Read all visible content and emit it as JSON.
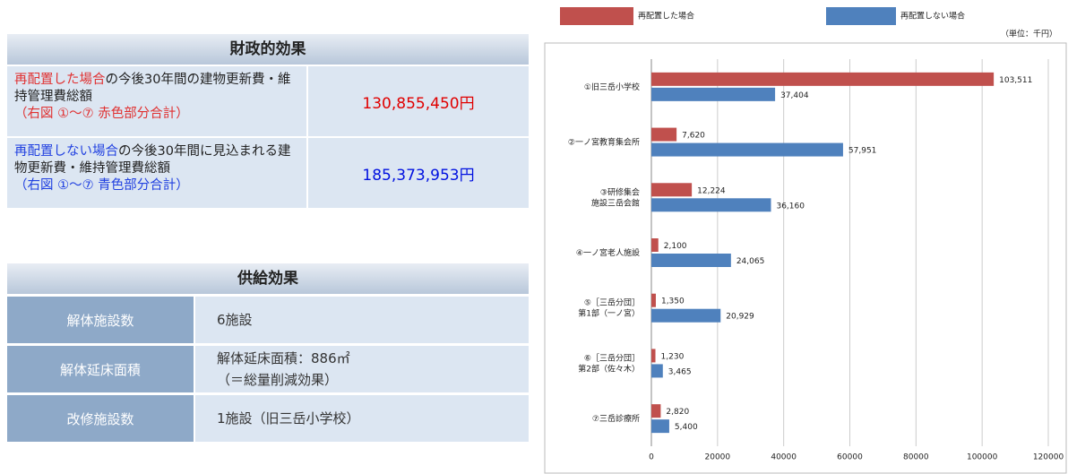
{
  "financial": {
    "title": "財政的効果",
    "rows": [
      {
        "parts": [
          "再配置した場合",
          "の今後30年間の建物更新費・維持管理費総額",
          "（右図 ①〜⑦ 赤色部分合計）"
        ],
        "value": "130,855,450円"
      },
      {
        "parts": [
          "再配置しない場合",
          "の今後30年間に見込まれる建物更新費・維持管理費総額",
          "（右図 ①〜⑦ 青色部分合計）"
        ],
        "value": "185,373,953円"
      }
    ]
  },
  "supply": {
    "title": "供給効果",
    "rows": [
      {
        "label": "解体施設数",
        "lines": [
          "6施設"
        ]
      },
      {
        "label": "解体延床面積",
        "lines": [
          "解体延床面積：886㎡",
          "（＝総量削減効果）"
        ]
      },
      {
        "label": "改修施設数",
        "lines": [
          "1施設（旧三岳小学校）"
        ]
      }
    ]
  },
  "chart_data": {
    "type": "bar",
    "orientation": "horizontal",
    "unit_note": "（単位：千円）",
    "categories": [
      "①旧三岳小学校",
      "②一ノ宮教育集会所",
      "③研修集会\n施設三岳会館",
      "④一ノ宮老人施設",
      "⑤［三岳分団］\n第1部（一ノ宮）",
      "⑥［三岳分団］\n第2部（佐々木）",
      "⑦三岳診療所"
    ],
    "series": [
      {
        "name": "再配置した場合",
        "color": "#c0504d",
        "values": [
          103511,
          7620,
          12224,
          2100,
          1350,
          1230,
          2820
        ],
        "value_labels": [
          "103,511",
          "7,620",
          "12,224",
          "2,100",
          "1,350",
          "1,230",
          "2,820"
        ]
      },
      {
        "name": "再配置しない場合",
        "color": "#4f81bd",
        "values": [
          37404,
          57951,
          36160,
          24065,
          20929,
          3465,
          5400
        ],
        "value_labels": [
          "37,404",
          "57,951",
          "36,160",
          "24,065",
          "20,929",
          "3,465",
          "5,400"
        ]
      }
    ],
    "xlim": [
      0,
      120000
    ],
    "xticks": [
      0,
      20000,
      40000,
      60000,
      80000,
      100000,
      120000
    ],
    "grid": true
  }
}
